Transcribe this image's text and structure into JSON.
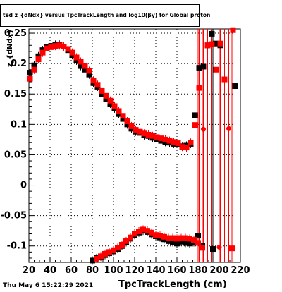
{
  "title": "ted  z_{dNdx} versus TpcTrackLength and log10(βγ) for Global proton",
  "timestamp": "Thu May  6 15:22:29 2021",
  "chart_data": {
    "type": "scatter",
    "title": "ted  z_{dNdx} versus TpcTrackLength and log10(βγ) for Global proton",
    "xlabel": "TpcTrackLength (cm)",
    "ylabel": "z_{dNdx}",
    "xlim": [
      20,
      220
    ],
    "ylim": [
      -0.127,
      0.257
    ],
    "x_ticks": [
      20,
      40,
      60,
      80,
      100,
      120,
      140,
      160,
      180,
      200,
      220
    ],
    "y_ticks": [
      -0.1,
      -0.05,
      0,
      0.05,
      0.1,
      0.15,
      0.2,
      0.25
    ],
    "y_tick_labels": [
      "-0.1",
      "-0.05",
      "0",
      "0.05",
      "0.1",
      "0.15",
      "0.2",
      "0.25"
    ],
    "grid": true,
    "series": [
      {
        "color": "#000000",
        "upper": [
          [
            21,
            0.185
          ],
          [
            25,
            0.197
          ],
          [
            29,
            0.212
          ],
          [
            33,
            0.222
          ],
          [
            37,
            0.227
          ],
          [
            41,
            0.229
          ],
          [
            45,
            0.231
          ],
          [
            49,
            0.231
          ],
          [
            53,
            0.228
          ],
          [
            57,
            0.222
          ],
          [
            61,
            0.214
          ],
          [
            65,
            0.205
          ],
          [
            69,
            0.196
          ],
          [
            73,
            0.19
          ],
          [
            77,
            0.182
          ],
          [
            81,
            0.168
          ],
          [
            85,
            0.162
          ],
          [
            89,
            0.15
          ],
          [
            93,
            0.142
          ],
          [
            97,
            0.134
          ],
          [
            101,
            0.126
          ],
          [
            105,
            0.117
          ],
          [
            109,
            0.109
          ],
          [
            113,
            0.1
          ],
          [
            117,
            0.093
          ],
          [
            121,
            0.088
          ],
          [
            125,
            0.086
          ],
          [
            129,
            0.082
          ],
          [
            133,
            0.081
          ],
          [
            137,
            0.078
          ],
          [
            141,
            0.076
          ],
          [
            145,
            0.073
          ],
          [
            149,
            0.071
          ],
          [
            153,
            0.07
          ],
          [
            157,
            0.068
          ],
          [
            161,
            0.067
          ],
          [
            165,
            0.064
          ],
          [
            169,
            0.065
          ],
          [
            173,
            0.068
          ],
          [
            177,
            0.115
          ],
          [
            181,
            0.193
          ],
          [
            185,
            0.195
          ],
          [
            189,
            0.23
          ],
          [
            193,
            0.249
          ],
          [
            197,
            0.233
          ],
          [
            201,
            0.23
          ],
          [
            215,
            0.163
          ]
        ],
        "lower": [
          [
            80,
            -0.124
          ],
          [
            84,
            -0.12
          ],
          [
            88,
            -0.118
          ],
          [
            92,
            -0.115
          ],
          [
            96,
            -0.112
          ],
          [
            100,
            -0.109
          ],
          [
            104,
            -0.105
          ],
          [
            108,
            -0.1
          ],
          [
            112,
            -0.094
          ],
          [
            116,
            -0.088
          ],
          [
            120,
            -0.082
          ],
          [
            124,
            -0.078
          ],
          [
            128,
            -0.075
          ],
          [
            132,
            -0.077
          ],
          [
            136,
            -0.081
          ],
          [
            140,
            -0.084
          ],
          [
            144,
            -0.086
          ],
          [
            148,
            -0.089
          ],
          [
            152,
            -0.092
          ],
          [
            156,
            -0.094
          ],
          [
            160,
            -0.096
          ],
          [
            164,
            -0.093
          ],
          [
            168,
            -0.095
          ],
          [
            172,
            -0.096
          ],
          [
            176,
            -0.094
          ],
          [
            180,
            -0.083
          ],
          [
            184,
            -0.1
          ],
          [
            194,
            -0.105
          ]
        ]
      },
      {
        "color": "#ff0000",
        "upper": [
          [
            21,
            0.175
          ],
          [
            25,
            0.19
          ],
          [
            29,
            0.207
          ],
          [
            33,
            0.218
          ],
          [
            37,
            0.225
          ],
          [
            41,
            0.227
          ],
          [
            45,
            0.229
          ],
          [
            49,
            0.23
          ],
          [
            53,
            0.228
          ],
          [
            57,
            0.224
          ],
          [
            61,
            0.218
          ],
          [
            65,
            0.21
          ],
          [
            69,
            0.203
          ],
          [
            73,
            0.196
          ],
          [
            77,
            0.188
          ],
          [
            81,
            0.172
          ],
          [
            85,
            0.165
          ],
          [
            89,
            0.155
          ],
          [
            93,
            0.147
          ],
          [
            97,
            0.139
          ],
          [
            101,
            0.13
          ],
          [
            105,
            0.122
          ],
          [
            109,
            0.114
          ],
          [
            113,
            0.105
          ],
          [
            117,
            0.097
          ],
          [
            121,
            0.091
          ],
          [
            125,
            0.088
          ],
          [
            129,
            0.085
          ],
          [
            133,
            0.083
          ],
          [
            137,
            0.081
          ],
          [
            141,
            0.079
          ],
          [
            145,
            0.077
          ],
          [
            149,
            0.075
          ],
          [
            153,
            0.073
          ],
          [
            157,
            0.071
          ],
          [
            161,
            0.069
          ],
          [
            165,
            0.063
          ],
          [
            169,
            0.062
          ],
          [
            173,
            0.07
          ],
          [
            177,
            0.099
          ],
          [
            181,
            0.16
          ],
          [
            185,
            0.092
          ],
          [
            189,
            0.23
          ],
          [
            193,
            0.232
          ],
          [
            197,
            0.19
          ],
          [
            201,
            0.233
          ],
          [
            205,
            0.174
          ],
          [
            209,
            0.093
          ],
          [
            213,
            0.255
          ]
        ],
        "lower": [
          [
            84,
            -0.121
          ],
          [
            88,
            -0.117
          ],
          [
            92,
            -0.113
          ],
          [
            96,
            -0.11
          ],
          [
            100,
            -0.107
          ],
          [
            104,
            -0.103
          ],
          [
            108,
            -0.098
          ],
          [
            112,
            -0.092
          ],
          [
            116,
            -0.086
          ],
          [
            120,
            -0.08
          ],
          [
            124,
            -0.076
          ],
          [
            128,
            -0.073
          ],
          [
            132,
            -0.075
          ],
          [
            136,
            -0.078
          ],
          [
            140,
            -0.082
          ],
          [
            144,
            -0.083
          ],
          [
            148,
            -0.085
          ],
          [
            152,
            -0.087
          ],
          [
            156,
            -0.087
          ],
          [
            160,
            -0.088
          ],
          [
            164,
            -0.087
          ],
          [
            168,
            -0.087
          ],
          [
            172,
            -0.088
          ],
          [
            176,
            -0.09
          ],
          [
            180,
            -0.095
          ],
          [
            184,
            -0.103
          ],
          [
            200,
            -0.102
          ],
          [
            212,
            -0.104
          ]
        ]
      }
    ]
  }
}
